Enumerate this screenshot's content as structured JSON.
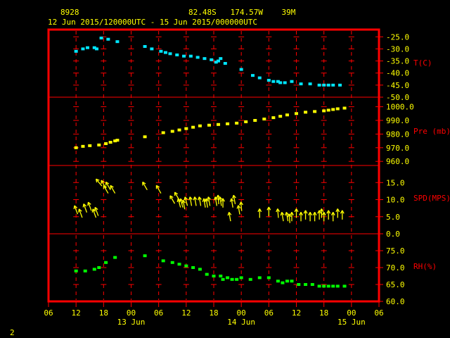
{
  "header": {
    "station_id": "8928",
    "location": "82.48S   174.57W    39M",
    "period": "12 Jun 2015/120000UTC - 15 Jun 2015/000000UTC"
  },
  "footer": {
    "page_number": "2"
  },
  "colors": {
    "background": "#000000",
    "frame": "#ff0000",
    "grid": "#ff0000",
    "axis_text": "#ffff00",
    "panel_label": "#ff0000",
    "temperature": "#00e5ff",
    "pressure": "#ffff00",
    "wind": "#ffff00",
    "rh": "#00ff00"
  },
  "chart_data": {
    "type": "scatter",
    "x_tick_labels": [
      "06",
      "12",
      "18",
      "00",
      "06",
      "12",
      "18",
      "00",
      "06",
      "12",
      "18",
      "00",
      "06"
    ],
    "date_labels": [
      "13 Jun",
      "14 Jun",
      "15 Jun"
    ],
    "xlim_hours": [
      0,
      72
    ],
    "x_axis_starts": "12 Jun 2015 06 UTC",
    "panels": [
      {
        "name": "temperature",
        "label": "T(C)",
        "ylim": [
          -50,
          -22
        ],
        "ticks": [
          "-25.0",
          "-30.0",
          "-35.0",
          "-40.0",
          "-45.0",
          "-50.0"
        ],
        "tick_values": [
          -25,
          -30,
          -35,
          -40,
          -45,
          -50
        ],
        "x": [
          6,
          7.5,
          8.5,
          10,
          10.5,
          11.5,
          13,
          15,
          21,
          22.5,
          24.5,
          25.5,
          26.5,
          28,
          29.5,
          31,
          32.5,
          34,
          35.5,
          36.5,
          37,
          37.5,
          38.5,
          42,
          44.5,
          46,
          48,
          49,
          50,
          50.5,
          51.5,
          53,
          55,
          57,
          59,
          60,
          61,
          62,
          63.5
        ],
        "y": [
          -31,
          -30,
          -29.5,
          -29.5,
          -30,
          -25.5,
          -26,
          -27,
          -29,
          -30,
          -31,
          -31.5,
          -32,
          -32.5,
          -33,
          -33,
          -33.5,
          -34,
          -34.5,
          -35.5,
          -35,
          -34,
          -36,
          -38.5,
          -41,
          -42,
          -43,
          -43.5,
          -43.5,
          -44,
          -44,
          -43.5,
          -44.5,
          -44.5,
          -45,
          -45,
          -45,
          -45,
          -45
        ]
      },
      {
        "name": "pressure",
        "label": "Pre (mb)",
        "ylim": [
          957,
          1007
        ],
        "ticks": [
          "1000.0",
          "990.0",
          "980.0",
          "970.0",
          "960.0"
        ],
        "tick_values": [
          1000,
          990,
          980,
          970,
          960
        ],
        "x": [
          6,
          7.5,
          9,
          11,
          12.5,
          13.5,
          14.5,
          15,
          21,
          25,
          27,
          28.5,
          30,
          31.5,
          33,
          35,
          37,
          39,
          41,
          43,
          45,
          47,
          49,
          50.5,
          52,
          54,
          56,
          58,
          60,
          61,
          62,
          63,
          64.5
        ],
        "y": [
          970,
          971,
          971.5,
          972,
          973,
          974,
          975,
          975.5,
          978,
          981,
          982,
          983,
          984,
          985,
          986,
          986.5,
          987,
          987.5,
          988,
          989,
          990,
          991,
          992,
          993,
          994,
          995,
          996,
          996.5,
          997,
          997.5,
          998,
          998.5,
          999
        ]
      },
      {
        "name": "wind",
        "label": "SPD(MPS)",
        "ylim": [
          0,
          20
        ],
        "ticks": [
          "15.0",
          "10.0",
          "5.0",
          "0.0"
        ],
        "tick_values": [
          15,
          10,
          5,
          0
        ],
        "x": [
          6,
          7,
          8,
          9,
          10,
          10.5,
          11,
          12,
          12.5,
          13,
          14,
          21,
          24,
          27,
          28,
          28.5,
          29,
          29.5,
          30,
          31,
          32,
          33,
          34,
          34.5,
          35,
          36.5,
          37,
          37.5,
          38,
          39.5,
          40,
          40.5,
          41.5,
          42,
          46,
          48,
          50,
          51,
          52,
          52.5,
          53,
          54,
          55,
          56,
          57,
          58,
          59,
          59.5,
          60,
          61,
          62,
          63,
          64
        ],
        "y": [
          7,
          6,
          7.5,
          8,
          6,
          6.5,
          15,
          14.5,
          13,
          14,
          13,
          14,
          13,
          10,
          11,
          9,
          9,
          8.5,
          9.5,
          9.5,
          9.5,
          9.5,
          9,
          9,
          9.5,
          9.5,
          10,
          9.5,
          9,
          5,
          9,
          10,
          7,
          8,
          6,
          6.5,
          6,
          5,
          5,
          4.5,
          5,
          6,
          5,
          5.5,
          5,
          5,
          5.5,
          6,
          5,
          5.5,
          5,
          6,
          5.5
        ],
        "directions": [
          160,
          160,
          160,
          160,
          160,
          160,
          140,
          150,
          150,
          150,
          150,
          150,
          150,
          150,
          150,
          165,
          165,
          170,
          165,
          170,
          170,
          170,
          170,
          170,
          170,
          170,
          175,
          170,
          180,
          170,
          170,
          170,
          170,
          175,
          180,
          180,
          175,
          170,
          170,
          175,
          180,
          180,
          180,
          180,
          180,
          180,
          180,
          180,
          180,
          180,
          180,
          180,
          180
        ]
      },
      {
        "name": "rh",
        "label": "RH(%)",
        "ylim": [
          60,
          80
        ],
        "ticks": [
          "75.0",
          "70.0",
          "65.0",
          "60.0"
        ],
        "tick_values": [
          75,
          70,
          65,
          60
        ],
        "x": [
          6,
          8,
          10,
          11,
          12.5,
          14.5,
          21,
          25,
          27,
          28.5,
          30,
          31.5,
          33,
          34.5,
          36,
          37.5,
          38,
          39,
          40,
          41,
          42,
          44,
          46,
          48,
          50,
          51,
          52,
          53,
          54.5,
          56,
          57.5,
          59,
          60,
          61,
          62,
          63,
          64.5
        ],
        "y": [
          69,
          69,
          69.5,
          70,
          71.5,
          73,
          73.5,
          72,
          71.5,
          71,
          70.5,
          70,
          69.5,
          68,
          67.5,
          67.5,
          66.5,
          67,
          66.5,
          66.5,
          67,
          66.5,
          67,
          67,
          66,
          65.5,
          66,
          66,
          65,
          65,
          65,
          64.5,
          64.5,
          64.5,
          64.5,
          64.5,
          64.5
        ]
      }
    ]
  }
}
